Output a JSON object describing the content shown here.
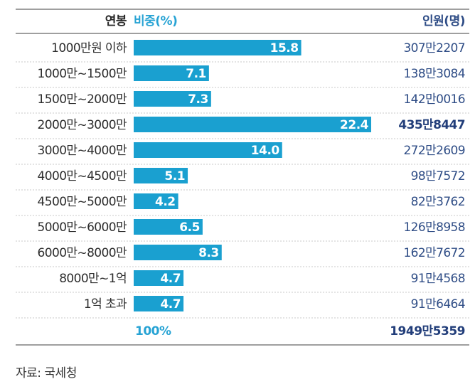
{
  "header": {
    "category_label": "연봉",
    "share_label": "비중(%)",
    "count_label": "인원(명)"
  },
  "chart_data": {
    "type": "bar",
    "orientation": "horizontal",
    "categories": [
      "1000만원 이하",
      "1000만~1500만",
      "1500만~2000만",
      "2000만~3000만",
      "3000만~4000만",
      "4000만~4500만",
      "4500만~5000만",
      "5000만~6000만",
      "6000만~8000만",
      "8000만~1억",
      "1억 초과"
    ],
    "series": [
      {
        "name": "비중(%)",
        "values": [
          15.8,
          7.1,
          7.3,
          22.4,
          14.0,
          5.1,
          4.2,
          6.5,
          8.3,
          4.7,
          4.7
        ],
        "value_labels": [
          "15.8",
          "7.1",
          "7.3",
          "22.4",
          "14.0",
          "5.1",
          "4.2",
          "6.5",
          "8.3",
          "4.7",
          "4.7"
        ]
      }
    ],
    "counts": [
      "307만2207",
      "138만3084",
      "142만0016",
      "435만8447",
      "272만2609",
      "98만7572",
      "82만3762",
      "126만8958",
      "162만7672",
      "91만4568",
      "91만6464"
    ],
    "highlight_index": 3,
    "xlim": [
      0,
      22.4
    ],
    "grid": false,
    "legend": "none",
    "totals": {
      "share": "100%",
      "count": "1949만5359"
    }
  },
  "source": "자료: 국세청",
  "colors": {
    "bar": "#1aa0d0",
    "header_blue": "#27a3d4",
    "count_text": "#2f4d86",
    "row_divider": "#c8c8c8"
  }
}
